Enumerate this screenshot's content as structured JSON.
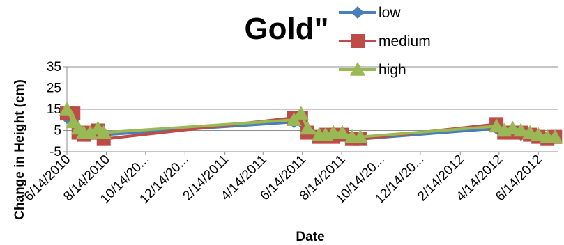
{
  "chart_data": {
    "type": "line",
    "title": "Gold\"",
    "xlabel": "Date",
    "ylabel": "Change in Height (cm)",
    "ylim": [
      -5,
      35
    ],
    "yticks": [
      "35",
      "25",
      "15",
      "5",
      "-5"
    ],
    "xlim": [
      "2010-06-14",
      "2012-07-14"
    ],
    "xtick_labels": [
      "6/14/2010",
      "8/14/2010",
      "10/14/20...",
      "12/14/20...",
      "2/14/2011",
      "4/14/2011",
      "6/14/2011",
      "8/14/2011",
      "10/14/20...",
      "12/14/20...",
      "2/14/2012",
      "4/14/2012",
      "6/14/2012"
    ],
    "grid": true,
    "legend_position": "top-right",
    "series": [
      {
        "name": "low",
        "color": "#4a7ebb",
        "marker": "diamond",
        "x": [
          "2010-06-14",
          "2010-06-24",
          "2010-07-02",
          "2010-07-10",
          "2010-07-20",
          "2010-08-01",
          "2010-08-10",
          "2011-06-01",
          "2011-06-12",
          "2011-06-22",
          "2011-07-10",
          "2011-07-20",
          "2011-08-01",
          "2011-08-15",
          "2011-08-30",
          "2011-09-12",
          "2012-04-10",
          "2012-04-22",
          "2012-05-05",
          "2012-05-18",
          "2012-06-01",
          "2012-06-14",
          "2012-06-28",
          "2012-07-10"
        ],
        "y": [
          11,
          9,
          4,
          3,
          3,
          4,
          3,
          9,
          9,
          5,
          2,
          2,
          2,
          3,
          2,
          1,
          6,
          4,
          4,
          3,
          3,
          2,
          2,
          2
        ]
      },
      {
        "name": "medium",
        "color": "#be4b48",
        "marker": "square",
        "x": [
          "2010-06-14",
          "2010-06-24",
          "2010-07-02",
          "2010-07-10",
          "2010-07-20",
          "2010-08-01",
          "2010-08-10",
          "2011-06-01",
          "2011-06-12",
          "2011-06-22",
          "2011-07-10",
          "2011-07-20",
          "2011-08-01",
          "2011-08-15",
          "2011-08-30",
          "2011-09-12",
          "2012-04-10",
          "2012-04-22",
          "2012-05-05",
          "2012-05-18",
          "2012-06-01",
          "2012-06-14",
          "2012-06-28",
          "2012-07-10"
        ],
        "y": [
          13,
          13,
          4,
          3,
          4,
          5,
          1,
          11,
          11,
          4,
          2,
          3,
          2,
          3,
          1,
          1,
          8,
          4,
          4,
          4,
          3,
          2,
          1,
          2
        ]
      },
      {
        "name": "high",
        "color": "#98b954",
        "marker": "triangle",
        "x": [
          "2010-06-14",
          "2010-06-24",
          "2010-07-02",
          "2010-07-10",
          "2010-07-20",
          "2010-08-01",
          "2010-08-10",
          "2011-06-01",
          "2011-06-12",
          "2011-06-22",
          "2011-07-10",
          "2011-07-20",
          "2011-08-01",
          "2011-08-15",
          "2011-08-30",
          "2011-09-12",
          "2012-04-10",
          "2012-04-22",
          "2012-05-05",
          "2012-05-18",
          "2012-06-01",
          "2012-06-14",
          "2012-06-28",
          "2012-07-10"
        ],
        "y": [
          15,
          9,
          6,
          4,
          4,
          6,
          4,
          10,
          13,
          6,
          3,
          3,
          4,
          4,
          2,
          2,
          7,
          5,
          6,
          5,
          4,
          3,
          2,
          2
        ]
      }
    ]
  }
}
